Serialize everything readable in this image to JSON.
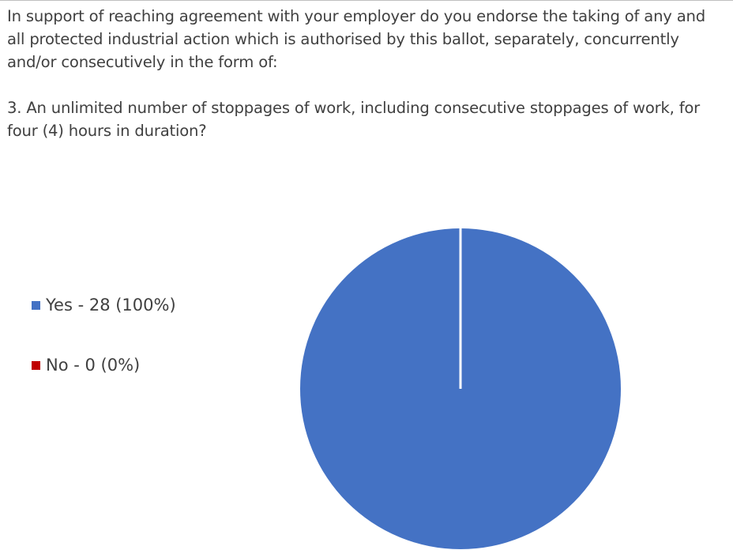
{
  "question": {
    "intro": "In support of reaching agreement with your employer do you endorse the taking of any and all protected industrial action which is authorised by this ballot, separately, concurrently and/or consecutively in the form of:",
    "item": "3. An unlimited number of stoppages of work, including consecutive stoppages of work, for four (4) hours in duration?"
  },
  "chart_data": {
    "type": "pie",
    "slices": [
      {
        "label": "Yes - 28 (100%)",
        "category": "Yes",
        "value": 28,
        "percent": 100,
        "color": "#4472c4"
      },
      {
        "label": "No - 0 (0%)",
        "category": "No",
        "value": 0,
        "percent": 0,
        "color": "#c00000"
      }
    ],
    "legend": "left"
  }
}
